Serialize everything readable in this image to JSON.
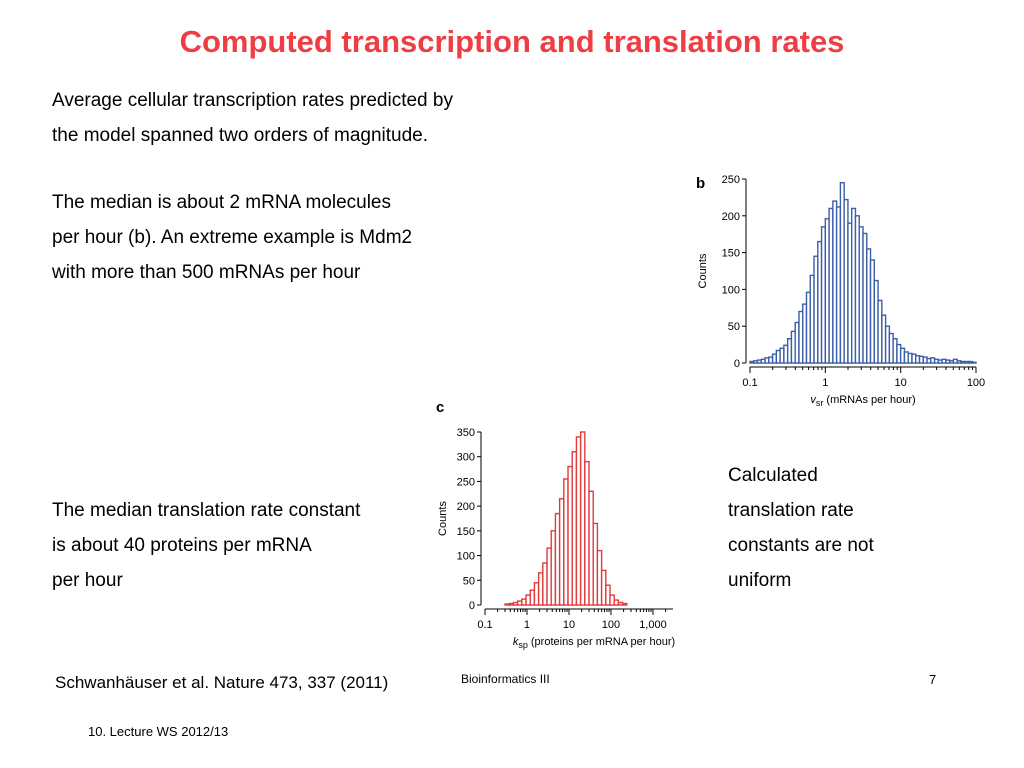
{
  "title": "Computed transcription and translation rates",
  "para1": [
    "Average cellular transcription rates predicted by",
    "the model spanned two orders of magnitude."
  ],
  "para2": [
    "The median is about 2 mRNA molecules",
    "per hour (b). An extreme example is Mdm2",
    "with more than 500 mRNAs per hour"
  ],
  "para3": [
    "The median translation rate constant",
    "is about 40 proteins per mRNA",
    "per hour"
  ],
  "para4": [
    "Calculated",
    "translation rate",
    "constants are not",
    "uniform"
  ],
  "citation": "Schwanhäuser et al. Nature 473, 337 (2011)",
  "footer_center": "Bioinformatics III",
  "page_number": "7",
  "lecture": "10. Lecture WS 2012/13",
  "chart_data": [
    {
      "type": "bar",
      "panel_label": "b",
      "color": "#3b5ea8",
      "xscale": "log",
      "xlim": [
        0.1,
        100
      ],
      "ylim": [
        0,
        250
      ],
      "xticks": [
        0.1,
        1,
        10,
        100
      ],
      "xtick_labels": [
        "0.1",
        "1",
        "10",
        "100"
      ],
      "yticks": [
        0,
        50,
        100,
        150,
        200,
        250
      ],
      "ylabel": "Counts",
      "xlabel_var": "v",
      "xlabel_sub": "sr",
      "xlabel_rest": " (mRNAs per hour)",
      "log10_bin_width": 0.05,
      "bin_start": 0.1,
      "values": [
        2,
        3,
        4,
        5,
        7,
        8,
        12,
        17,
        20,
        24,
        33,
        43,
        55,
        70,
        80,
        96,
        119,
        145,
        165,
        185,
        196,
        210,
        220,
        212,
        245,
        222,
        190,
        210,
        200,
        185,
        176,
        155,
        140,
        112,
        85,
        65,
        50,
        40,
        33,
        25,
        20,
        15,
        13,
        12,
        10,
        9,
        8,
        6,
        7,
        5,
        4,
        5,
        4,
        3,
        5,
        3,
        2,
        2,
        2,
        1
      ]
    },
    {
      "type": "bar",
      "panel_label": "c",
      "color": "#e13b3b",
      "xscale": "log",
      "xlim": [
        0.1,
        3000
      ],
      "ylim": [
        0,
        350
      ],
      "xticks": [
        0.1,
        1,
        10,
        100,
        1000
      ],
      "xtick_labels": [
        "0.1",
        "1",
        "10",
        "100",
        "1,000"
      ],
      "yticks": [
        0,
        50,
        100,
        150,
        200,
        250,
        300,
        350
      ],
      "ylabel": "Counts",
      "xlabel_var": "k",
      "xlabel_sub": "sp",
      "xlabel_rest": " (proteins per mRNA per hour)",
      "log10_bin_width": 0.1,
      "bin_start": 0.3,
      "values": [
        2,
        3,
        5,
        8,
        12,
        20,
        30,
        45,
        65,
        85,
        115,
        150,
        185,
        215,
        255,
        280,
        310,
        340,
        350,
        290,
        230,
        165,
        110,
        70,
        40,
        20,
        10,
        5,
        3
      ]
    }
  ]
}
